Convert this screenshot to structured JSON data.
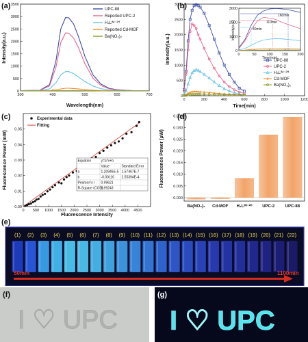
{
  "panels": {
    "a": {
      "label": "(a)",
      "xlabel": "Wavelength(nm)",
      "ylabel": "Intensity(a.u.)",
      "legend": [
        "UPC-88",
        "Reported UPC-2",
        "H₄Lᴵᴹ⁻²ᴴ",
        "Reported Cd-MOF",
        "Ba(NO₃)₂"
      ]
    },
    "b": {
      "label": "(b)",
      "xlabel": "Time(min)",
      "ylabel": "Intensity(a.u.)",
      "legend": [
        "UPC-88",
        "UPC-2",
        "H₄Lᴵᴹ⁻²ᴴ",
        "Cd-MOF",
        "Ba(NO₃)₂"
      ],
      "inset_annotations": [
        "160min",
        "110min",
        "40min"
      ],
      "inset_xlabel": "Time(min)",
      "inset_ylabel": "Intensity(a.u.)"
    },
    "c": {
      "label": "(c)",
      "xlabel": "Fluorescence Intensity",
      "ylabel": "Fluorescence Power (mW)",
      "legend": [
        "Experimental data",
        "Fitting"
      ],
      "fit_table": {
        "header": [
          "Equation",
          "y=a*x+b"
        ],
        "subheader": [
          "",
          "Value",
          "Standard Error"
        ],
        "rows": [
          [
            "a",
            "1.20946E-5",
            "1.57467E-7"
          ],
          [
            "b",
            "-0.00116",
            "2.55394E-4"
          ],
          [
            "Pearson's r",
            "0.99621",
            ""
          ],
          [
            "R-Square (COD)",
            "0.99243",
            ""
          ]
        ]
      }
    },
    "d": {
      "label": "(d)",
      "ylabel": "Fluorescence Power (μW)"
    },
    "e": {
      "label": "(e)",
      "vial_labels": [
        "(1)",
        "(2)",
        "(3)",
        "(4)",
        "(5)",
        "(6)",
        "(7)",
        "(8)",
        "(9)",
        "(10)",
        "(11)",
        "(12)",
        "(13)",
        "(14)",
        "(15)",
        "(16)",
        "(17)",
        "(18)",
        "(19)",
        "(20)",
        "(21)",
        "(22)"
      ],
      "start_label": "50min",
      "end_label": "1100min"
    },
    "f": {
      "label": "(f)",
      "text": "I ♡ UPC"
    },
    "g": {
      "label": "(g)",
      "text": "I ♡ UPC"
    }
  },
  "colors": {
    "upc88": "#3b4ba8",
    "upc2": "#e6638c",
    "h4l": "#61c0e8",
    "cdmof": "#f08a24",
    "ba": "#8a9a2a",
    "fit": "#d9473f",
    "bar": "#f2a46a",
    "glow": "#4fe6f0"
  },
  "chart_data": [
    {
      "panel": "a",
      "type": "line",
      "xlabel": "Wavelength(nm)",
      "ylabel": "Intensity(a.u.)",
      "xlim": [
        300,
        700
      ],
      "ylim": [
        0,
        3500
      ],
      "xticks": [
        300,
        400,
        500,
        600,
        700
      ],
      "yticks": [
        0,
        500,
        1000,
        1500,
        2000,
        2500,
        3000,
        3500
      ],
      "x": [
        300,
        360,
        390,
        410,
        425,
        440,
        450,
        465,
        480,
        500,
        525,
        550,
        575,
        600,
        650,
        700
      ],
      "series": [
        {
          "name": "UPC-88",
          "values": [
            10,
            30,
            250,
            1200,
            2500,
            2960,
            2950,
            2700,
            2200,
            1400,
            650,
            280,
            110,
            50,
            15,
            5
          ]
        },
        {
          "name": "Reported UPC-2",
          "values": [
            10,
            25,
            200,
            950,
            1950,
            2340,
            2330,
            2130,
            1750,
            1100,
            520,
            220,
            90,
            40,
            12,
            5
          ]
        },
        {
          "name": "H₄Lᴵᴹ⁻²ᴴ",
          "values": [
            5,
            20,
            80,
            330,
            650,
            780,
            780,
            700,
            560,
            380,
            200,
            90,
            40,
            20,
            8,
            3
          ]
        },
        {
          "name": "Reported Cd-MOF",
          "values": [
            0,
            5,
            15,
            40,
            80,
            110,
            110,
            100,
            80,
            55,
            30,
            15,
            8,
            4,
            2,
            1
          ]
        },
        {
          "name": "Ba(NO₃)₂",
          "values": [
            0,
            2,
            5,
            8,
            10,
            12,
            12,
            11,
            10,
            8,
            6,
            4,
            3,
            2,
            1,
            0
          ]
        }
      ]
    },
    {
      "panel": "b",
      "type": "line",
      "xlabel": "Time(min)",
      "ylabel": "Intensity(a.u.)",
      "xlim": [
        0,
        1200
      ],
      "ylim": [
        0,
        3000
      ],
      "xticks": [
        0,
        200,
        400,
        600,
        800,
        1000,
        1200
      ],
      "yticks": [
        0,
        500,
        1000,
        1500,
        2000,
        2500,
        3000
      ],
      "x": [
        0,
        20,
        40,
        60,
        80,
        100,
        120,
        140,
        160,
        200,
        250,
        300,
        350,
        400,
        450,
        500,
        550,
        600
      ],
      "series": [
        {
          "name": "UPC-88",
          "values": [
            200,
            800,
            1800,
            2500,
            2800,
            2950,
            2980,
            2950,
            2900,
            2700,
            2300,
            1850,
            1400,
            1000,
            700,
            450,
            250,
            150
          ]
        },
        {
          "name": "UPC-2",
          "values": [
            150,
            700,
            1500,
            2100,
            2350,
            2300,
            2200,
            2000,
            1850,
            1550,
            1200,
            900,
            650,
            450,
            300,
            200,
            120,
            80
          ]
        },
        {
          "name": "H₄Lᴵᴹ⁻²ᴴ",
          "values": [
            50,
            150,
            380,
            600,
            750,
            820,
            850,
            830,
            790,
            700,
            580,
            450,
            330,
            230,
            150,
            100,
            60,
            40
          ]
        },
        {
          "name": "Cd-MOF",
          "values": [
            10,
            40,
            80,
            110,
            130,
            140,
            140,
            135,
            130,
            120,
            105,
            90,
            75,
            60,
            50,
            40,
            30,
            25
          ]
        },
        {
          "name": "Ba(NO₃)₂",
          "values": [
            5,
            15,
            30,
            40,
            45,
            48,
            50,
            50,
            50,
            48,
            45,
            42,
            40,
            38,
            35,
            32,
            30,
            28
          ]
        }
      ],
      "inset": {
        "xlim": [
          0,
          200
        ],
        "ylim": [
          0,
          3000
        ],
        "xticks": [
          0,
          50,
          100,
          150,
          200
        ],
        "yticks": [
          0,
          1000,
          2000,
          3000
        ]
      }
    },
    {
      "panel": "c",
      "type": "scatter",
      "xlabel": "Fluorescence Intensity",
      "ylabel": "Fluorescence Power (mW)",
      "xlim": [
        0,
        5000
      ],
      "ylim": [
        0,
        0.06
      ],
      "xticks": [
        0,
        500,
        1000,
        1500,
        2000,
        2500,
        3000,
        3500,
        4000,
        4500
      ],
      "yticks": [
        0.0,
        0.01,
        0.02,
        0.03,
        0.04,
        0.05
      ],
      "fit": {
        "a": 1.20946e-05,
        "b": -0.00116
      },
      "points": [
        [
          80,
          0.0005
        ],
        [
          150,
          0.001
        ],
        [
          220,
          0.0015
        ],
        [
          300,
          0.002
        ],
        [
          380,
          0.0028
        ],
        [
          460,
          0.0035
        ],
        [
          520,
          0.0045
        ],
        [
          600,
          0.005
        ],
        [
          680,
          0.0065
        ],
        [
          760,
          0.0075
        ],
        [
          850,
          0.0082
        ],
        [
          950,
          0.0098
        ],
        [
          1050,
          0.011
        ],
        [
          1150,
          0.0125
        ],
        [
          1250,
          0.0138
        ],
        [
          1400,
          0.0155
        ],
        [
          1500,
          0.015
        ],
        [
          1600,
          0.0175
        ],
        [
          1700,
          0.019
        ],
        [
          1800,
          0.02
        ],
        [
          1950,
          0.022
        ],
        [
          2100,
          0.023
        ],
        [
          2250,
          0.024
        ],
        [
          2400,
          0.027
        ],
        [
          2550,
          0.029
        ],
        [
          2700,
          0.031
        ],
        [
          2850,
          0.032
        ],
        [
          3000,
          0.0345
        ],
        [
          3150,
          0.036
        ],
        [
          3300,
          0.038
        ],
        [
          3450,
          0.0395
        ],
        [
          3600,
          0.041
        ],
        [
          3750,
          0.042
        ],
        [
          3900,
          0.044
        ],
        [
          4050,
          0.047
        ],
        [
          4250,
          0.048
        ],
        [
          4450,
          0.052
        ],
        [
          4550,
          0.0545
        ]
      ]
    },
    {
      "panel": "d",
      "type": "bar",
      "ylabel": "Fluorescence Power (μW)",
      "categories": [
        "Ba(NO₃)₂",
        "Cd-MOF",
        "H₄Lᴵᴹ⁻²ᴴ",
        "UPC-2",
        "UPC-88"
      ],
      "values": [
        -0.0007,
        -0.0005,
        0.0083,
        0.0269,
        0.0345
      ],
      "ylim": [
        -0.0015,
        0.036
      ],
      "yticks": [
        0.0,
        0.005,
        0.01,
        0.015,
        0.02,
        0.025,
        0.03,
        0.035
      ]
    }
  ]
}
